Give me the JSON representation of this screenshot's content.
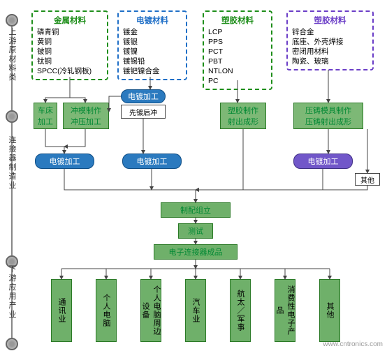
{
  "sideLabels": {
    "upstream": "上游原材料类",
    "mid": "连接器制造业",
    "downstream": "下游应用产业"
  },
  "materials": {
    "metal": {
      "title": "金属材料",
      "color": "#1e8e1a",
      "items": [
        "磷青铜",
        "黄铜",
        "铍铜",
        "钛铜",
        "SPCC(冷轧钢板)"
      ]
    },
    "plating": {
      "title": "电镀材料",
      "color": "#1f6fc7",
      "items": [
        "镀金",
        "镀银",
        "镀镍",
        "镀锡铅",
        "镀钯镍合金"
      ]
    },
    "plastic1": {
      "title": "塑胶材料",
      "color": "#1e8e1a",
      "items": [
        "LCP",
        "PPS",
        "PCT",
        "PBT",
        "NTLON",
        "PC"
      ]
    },
    "plastic2": {
      "title": "塑胶材料",
      "color": "#6b3ec7",
      "items": [
        "锌合金",
        "底座、外壳焊接",
        "密闭用材料",
        "陶瓷、玻璃"
      ]
    }
  },
  "proc": {
    "lathe": "车床\n加工",
    "stamp": "冲模制作\n冲压加工",
    "eplate_proc": "电镀加工",
    "eplate_sub": "先镀后冲",
    "mold": "塑胶制作\n射出成形",
    "diecast": "压铸模具制作\n压铸射出成形",
    "ep1": "电镀加工",
    "ep2": "电镀加工",
    "ep3": "电镀加工",
    "other": "其他",
    "assembly": "制配组立",
    "test": "测试",
    "final": "电子连接器成品"
  },
  "apps": [
    "通讯业",
    "个人电脑",
    "个人电脑周边设备",
    "汽车业",
    "航太／军事",
    "消费性电子产品",
    "其他"
  ],
  "watermark": "www.cntronics.com",
  "colors": {
    "green": "#6fb06a",
    "greenDark": "#3e8c3a",
    "blue": "#2b7abf",
    "purple": "#7157c9",
    "line": "#444"
  }
}
